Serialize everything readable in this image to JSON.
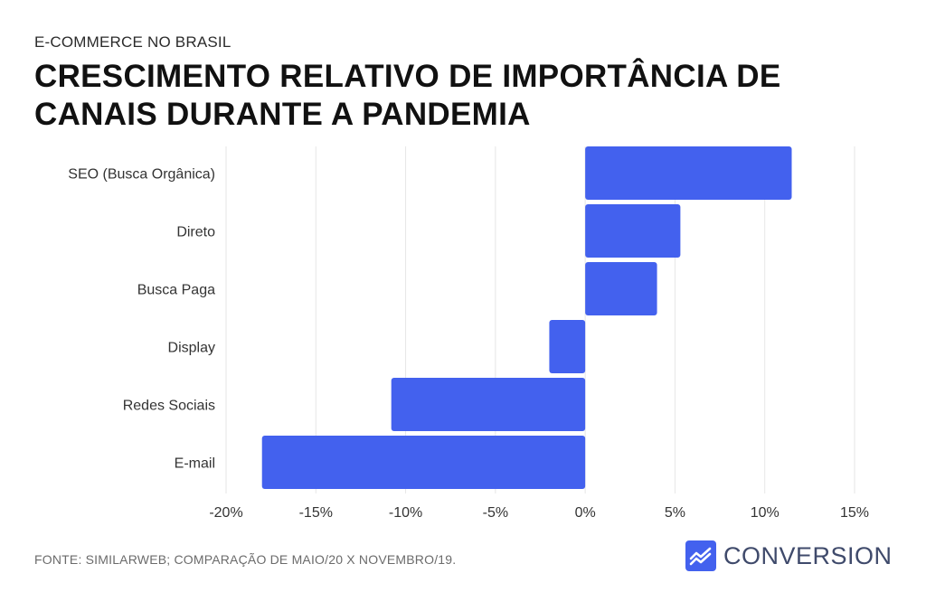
{
  "header": {
    "kicker": "E-COMMERCE NO BRASIL",
    "title": "CRESCIMENTO RELATIVO DE IMPORTÂNCIA DE CANAIS DURANTE A PANDEMIA"
  },
  "footer": {
    "source": "FONTE: SIMILARWEB; COMPARAÇÃO DE MAIO/20 X NOVEMBRO/19.",
    "brand": "CONVERSION",
    "brand_icon": "rising-line-chart-icon"
  },
  "colors": {
    "bar": "#4361ee",
    "grid": "#e6e6e6",
    "text": "#333333",
    "brand": "#3f4a6b"
  },
  "chart_data": {
    "type": "bar",
    "orientation": "horizontal",
    "categories": [
      "SEO (Busca Orgânica)",
      "Direto",
      "Busca Paga",
      "Display",
      "Redes Sociais",
      "E-mail"
    ],
    "values": [
      11.5,
      5.3,
      4.0,
      -2.0,
      -10.8,
      -18.0
    ],
    "xlim": [
      -20,
      15
    ],
    "xticks": [
      -20,
      -15,
      -10,
      -5,
      0,
      5,
      10,
      15
    ],
    "xtick_labels": [
      "-20%",
      "-15%",
      "-10%",
      "-5%",
      "0%",
      "5%",
      "10%",
      "15%"
    ],
    "grid": "vertical"
  }
}
